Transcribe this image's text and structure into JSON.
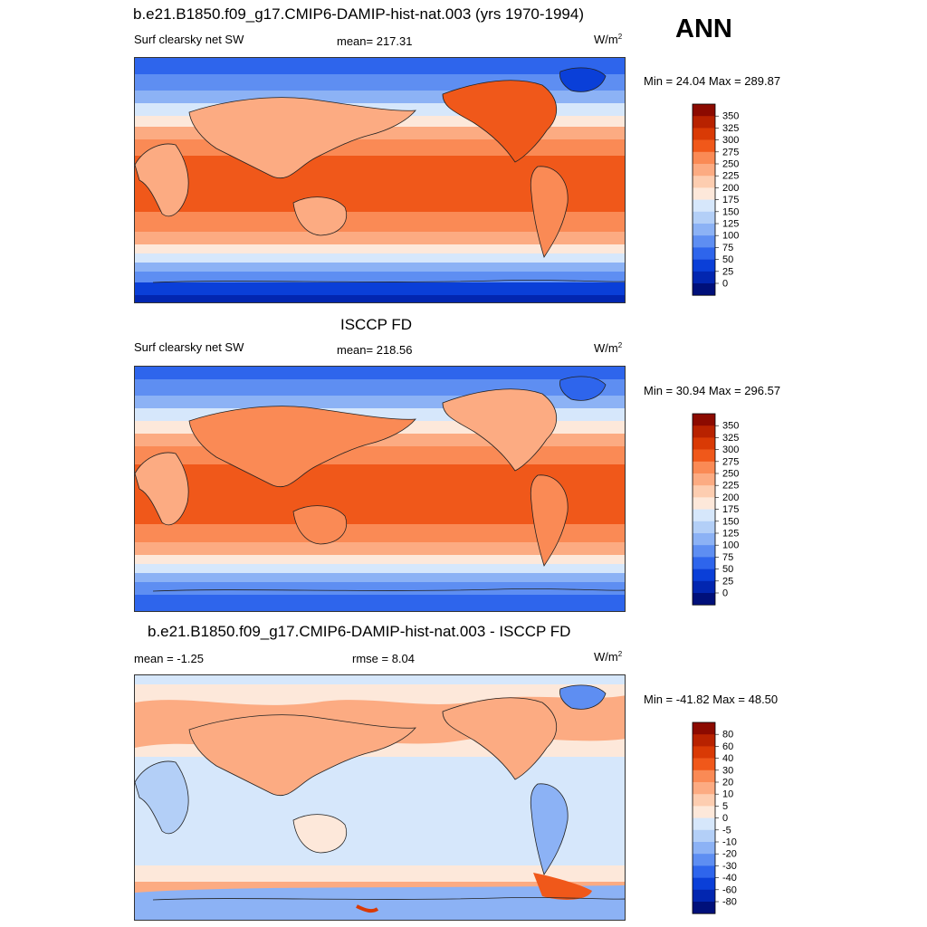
{
  "header": {
    "main_title": "b.e21.B1850.f09_g17.CMIP6-DAMIP-hist-nat.003 (yrs 1970-1994)",
    "season": "ANN"
  },
  "panels": [
    {
      "id": "model",
      "title": "",
      "variable": "Surf clearsky net SW",
      "stat_text": "mean= 217.31",
      "stat2_text": "",
      "units_base": "W/m",
      "units_exp": "2",
      "minmax": "Min =  24.04 Max = 289.87",
      "kind": "abs"
    },
    {
      "id": "obs",
      "title": "ISCCP FD",
      "variable": "Surf clearsky net SW",
      "stat_text": "mean= 218.56",
      "stat2_text": "",
      "units_base": "W/m",
      "units_exp": "2",
      "minmax": "Min =  30.94 Max = 296.57",
      "kind": "abs"
    },
    {
      "id": "diff",
      "title": "b.e21.B1850.f09_g17.CMIP6-DAMIP-hist-nat.003 - ISCCP FD",
      "variable": "",
      "stat_text": "mean =  -1.25",
      "stat2_text": "rmse =   8.04",
      "units_base": "W/m",
      "units_exp": "2",
      "minmax": "Min = -41.82 Max =  48.50",
      "kind": "diff"
    }
  ],
  "colorbars": {
    "abs": {
      "labels": [
        "350",
        "325",
        "300",
        "275",
        "250",
        "225",
        "200",
        "175",
        "150",
        "125",
        "100",
        "75",
        "50",
        "25",
        "0"
      ],
      "colors": [
        "#8c0a00",
        "#b82200",
        "#d93a05",
        "#f0581a",
        "#fa8a55",
        "#fcab82",
        "#fdcdb0",
        "#fde8da",
        "#d6e7fb",
        "#b3cff7",
        "#8cb2f5",
        "#5e8ef2",
        "#2e65ec",
        "#0a3fd8",
        "#0226b0",
        "#00107a"
      ]
    },
    "diff": {
      "labels": [
        "80",
        "60",
        "40",
        "30",
        "20",
        "10",
        "5",
        "0",
        "-5",
        "-10",
        "-20",
        "-30",
        "-40",
        "-60",
        "-80"
      ],
      "colors": [
        "#8c0a00",
        "#b82200",
        "#d93a05",
        "#f0581a",
        "#fa8a55",
        "#fcab82",
        "#fdcdb0",
        "#fde8da",
        "#d6e7fb",
        "#b3cff7",
        "#8cb2f5",
        "#5e8ef2",
        "#2e65ec",
        "#0a3fd8",
        "#0226b0",
        "#00107a"
      ]
    }
  }
}
